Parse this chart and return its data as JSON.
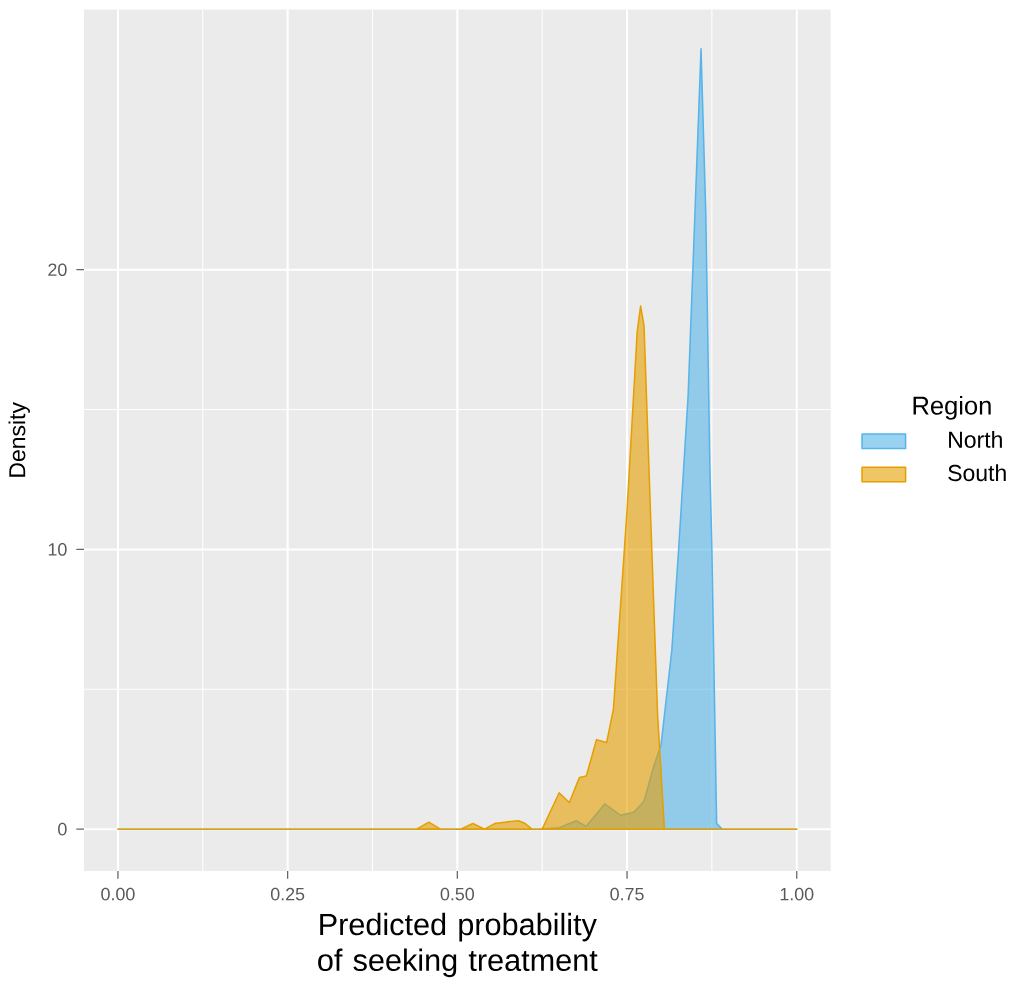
{
  "chart_data": {
    "type": "area",
    "xlabel": "Predicted probability of seeking treatment",
    "ylabel": "Density",
    "legend_title": "Region",
    "legend": "right",
    "grid": true,
    "xlim": [
      -0.05,
      1.05
    ],
    "ylim": [
      -1.5,
      29.3
    ],
    "xticks": [
      {
        "value": 0,
        "label": "0.00"
      },
      {
        "value": 0.25,
        "label": "0.25"
      },
      {
        "value": 0.5,
        "label": "0.50"
      },
      {
        "value": 0.75,
        "label": "0.75"
      },
      {
        "value": 1,
        "label": "1.00"
      }
    ],
    "yticks": [
      0,
      10,
      20
    ],
    "series": [
      {
        "name": "North",
        "color": "#56b4e9",
        "x": [
          0,
          0.62,
          0.65,
          0.675,
          0.69,
          0.717,
          0.74,
          0.76,
          0.775,
          0.79,
          0.8,
          0.816,
          0.826,
          0.84,
          0.85,
          0.859,
          0.866,
          0.872,
          0.875,
          0.882,
          0.89,
          1
        ],
        "values": [
          0,
          0,
          0.05,
          0.3,
          0.1,
          0.9,
          0.5,
          0.6,
          1.0,
          2.3,
          3.0,
          6.4,
          10,
          15.5,
          22,
          27.9,
          22,
          13,
          10,
          0.2,
          0,
          0
        ]
      },
      {
        "name": "South",
        "color": "#e69f00",
        "x": [
          0,
          0.44,
          0.458,
          0.475,
          0.505,
          0.523,
          0.54,
          0.555,
          0.57,
          0.59,
          0.6,
          0.61,
          0.625,
          0.65,
          0.665,
          0.68,
          0.69,
          0.705,
          0.72,
          0.73,
          0.75,
          0.765,
          0.77,
          0.775,
          0.785,
          0.795,
          0.805,
          0.81,
          1
        ],
        "values": [
          0,
          0,
          0.25,
          0,
          0,
          0.2,
          0,
          0.2,
          0.25,
          0.3,
          0.2,
          0,
          0,
          1.3,
          0.95,
          1.85,
          1.9,
          3.2,
          3.1,
          4.3,
          11.4,
          17.8,
          18.7,
          18.0,
          11,
          4.1,
          0,
          0,
          0
        ]
      }
    ]
  }
}
